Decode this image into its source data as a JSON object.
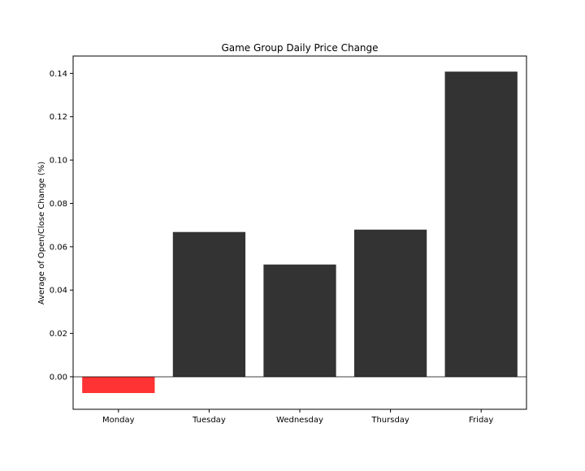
{
  "chart_data": {
    "type": "bar",
    "title": "Game Group Daily Price Change",
    "xlabel": "",
    "ylabel": "Average of Open/Close Change (%)",
    "categories": [
      "Monday",
      "Tuesday",
      "Wednesday",
      "Thursday",
      "Friday"
    ],
    "values": [
      -0.0075,
      0.0668,
      0.0518,
      0.0679,
      0.1408
    ],
    "ylim": [
      -0.015,
      0.148
    ],
    "yticks": [
      0.0,
      0.02,
      0.04,
      0.06,
      0.08,
      0.1,
      0.12,
      0.14
    ],
    "ytick_labels": [
      "0.00",
      "0.02",
      "0.04",
      "0.06",
      "0.08",
      "0.10",
      "0.12",
      "0.14"
    ],
    "grid": false,
    "zero_line": true,
    "colors": {
      "positive": "#333333",
      "negative": "#ff3333",
      "axis": "#000000",
      "zero_line": "#000000"
    }
  }
}
